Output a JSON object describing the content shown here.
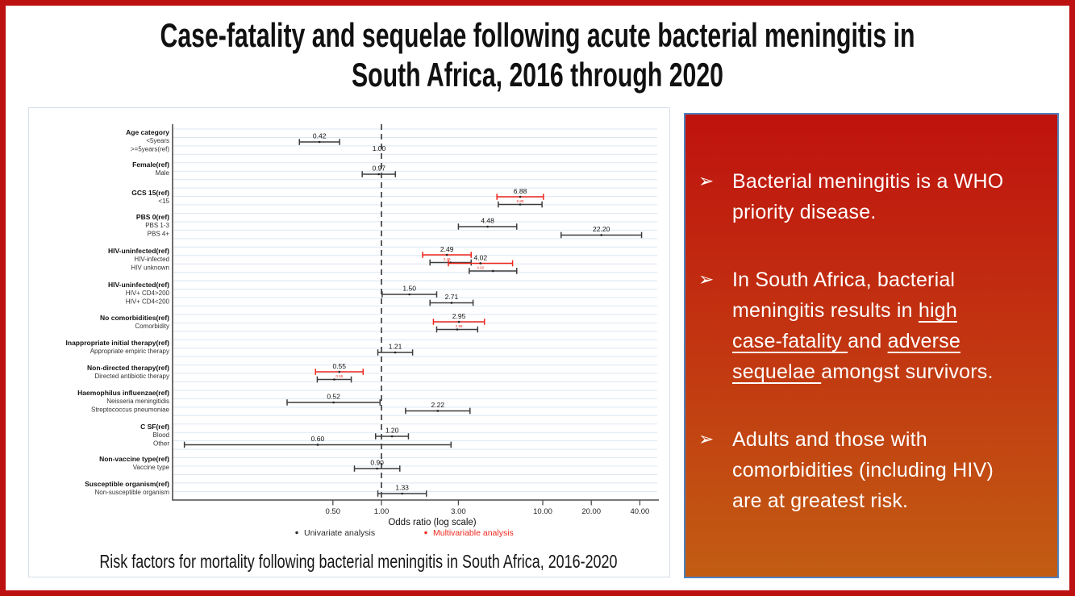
{
  "colors": {
    "outer_border": "#bd1010",
    "panel_border": "#4f81bd",
    "panel_gradient_top": "#bf120e",
    "panel_gradient_bottom": "#c25d13",
    "panel_text": "#ffffff",
    "univariate": "#3c3c3c",
    "multivariable": "#ee261b",
    "gridline": "#dde7f1"
  },
  "title": {
    "line1": "Case-fatality and sequelae following acute bacterial meningitis in",
    "line2": "South Africa, 2016 through 2020"
  },
  "figure": {
    "caption": "Risk factors for mortality following bacterial meningitis in South Africa, 2016-2020"
  },
  "chart_data": {
    "type": "forest",
    "xlabel": "Odds ratio (log scale)",
    "x_scale": "log10",
    "x_ticks": [
      0.5,
      1.0,
      3.0,
      10.0,
      20.0,
      40.0
    ],
    "x_tick_labels": [
      "0.50",
      "1.00",
      "3.00",
      "10.00",
      "20.00",
      "40.00"
    ],
    "reference_line": 1.0,
    "grid": true,
    "legend": [
      {
        "label": "Univariate analysis",
        "color": "#2b2b2b"
      },
      {
        "label": "Multivariable analysis",
        "color": "#ee261b"
      }
    ],
    "groups": [
      {
        "header": "Age category",
        "rows": [
          {
            "label": "<5years",
            "value_label": "0.42",
            "uni": {
              "or": 0.42,
              "lo": 0.31,
              "hi": 0.55
            }
          },
          {
            "label": ">=5years(ref)",
            "value_label": "1.00",
            "ref": true
          }
        ]
      },
      {
        "header": "Female(ref)",
        "rows": [
          {
            "label": "Male",
            "value_label": "0.97",
            "uni": {
              "or": 0.97,
              "lo": 0.76,
              "hi": 1.22
            }
          }
        ]
      },
      {
        "header": "GCS 15(ref)",
        "rows": [
          {
            "label": "<15",
            "value_label": "6.88",
            "multi": {
              "or": 6.88,
              "lo": 5.2,
              "hi": 10.1
            },
            "uni": {
              "lo": 5.3,
              "hi": 9.9
            }
          }
        ]
      },
      {
        "header": "PBS 0(ref)",
        "rows": [
          {
            "label": "PBS 1-3",
            "value_label": "4.48",
            "uni": {
              "or": 4.48,
              "lo": 3.0,
              "hi": 6.9
            }
          },
          {
            "label": "PBS 4+",
            "value_label": "22.20",
            "uni": {
              "or": 22.2,
              "lo": 13.0,
              "hi": 41.0
            }
          }
        ]
      },
      {
        "header": "HIV-uninfected(ref)",
        "rows": [
          {
            "label": "HIV-infected",
            "value_label": "2.49",
            "multi": {
              "or": 2.49,
              "lo": 1.8,
              "hi": 3.6
            },
            "uni": {
              "lo": 2.0,
              "hi": 3.6
            }
          },
          {
            "label": "HIV unknown",
            "value_label": "4.02",
            "multi": {
              "or": 4.02,
              "lo": 2.6,
              "hi": 6.5
            },
            "uni": {
              "lo": 3.5,
              "hi": 6.9
            }
          }
        ]
      },
      {
        "header": "HIV-uninfected(ref)",
        "rows": [
          {
            "label": "HIV+ CD4>200",
            "value_label": "1.50",
            "uni": {
              "or": 1.5,
              "lo": 1.01,
              "hi": 2.2
            }
          },
          {
            "label": "HIV+ CD4<200",
            "value_label": "2.71",
            "uni": {
              "or": 2.71,
              "lo": 2.0,
              "hi": 3.7
            }
          }
        ]
      },
      {
        "header": "No comorbidities(ref)",
        "rows": [
          {
            "label": "Comorbidity",
            "value_label": "2.95",
            "multi": {
              "or": 2.95,
              "lo": 2.1,
              "hi": 4.35
            },
            "uni": {
              "lo": 2.2,
              "hi": 3.95
            }
          }
        ]
      },
      {
        "header": "Inappropriate initial therapy(ref)",
        "rows": [
          {
            "label": "Appropriate empiric therapy",
            "value_label": "1.21",
            "uni": {
              "or": 1.21,
              "lo": 0.95,
              "hi": 1.56
            }
          }
        ]
      },
      {
        "header": "Non-directed therapy(ref)",
        "rows": [
          {
            "label": "Directed antibiotic therapy",
            "value_label": "0.55",
            "multi": {
              "or": 0.55,
              "lo": 0.39,
              "hi": 0.77
            },
            "uni": {
              "lo": 0.4,
              "hi": 0.65
            }
          }
        ]
      },
      {
        "header": "Haemophilus influenzae(ref)",
        "rows": [
          {
            "label": "Neisseria meningitidis",
            "value_label": "0.52",
            "uni": {
              "or": 0.52,
              "lo": 0.26,
              "hi": 0.98
            }
          },
          {
            "label": "Streptococcus pneumoniae",
            "value_label": "2.22",
            "uni": {
              "or": 2.22,
              "lo": 1.41,
              "hi": 3.54
            }
          }
        ]
      },
      {
        "header": "C SF(ref)",
        "rows": [
          {
            "label": "Blood",
            "value_label": "1.20",
            "uni": {
              "or": 1.2,
              "lo": 0.92,
              "hi": 1.47
            }
          },
          {
            "label": "Other",
            "value_label": "0.60",
            "uni": {
              "or": 0.6,
              "lo": 0.06,
              "hi": 2.7
            }
          }
        ]
      },
      {
        "header": "Non-vaccine type(ref)",
        "rows": [
          {
            "label": "Vaccine type",
            "value_label": "0.90",
            "uni": {
              "or": 0.9,
              "lo": 0.68,
              "hi": 1.3
            }
          }
        ]
      },
      {
        "header": "Susceptible organism(ref)",
        "rows": [
          {
            "label": "Non-susceptible organism",
            "value_label": "1.33",
            "uni": {
              "or": 1.33,
              "lo": 0.95,
              "hi": 1.9
            }
          }
        ]
      }
    ]
  },
  "right_panel": {
    "bullet_icon": "➢",
    "bullets": [
      {
        "segments": [
          {
            "t": "Bacterial meningitis is a WHO\npriority disease."
          }
        ]
      },
      {
        "segments": [
          {
            "t": "In South Africa, bacterial\nmeningitis results in "
          },
          {
            "t": "high",
            "u": true
          },
          {
            "t": "\n"
          },
          {
            "t": "case-fatality ",
            "u": true
          },
          {
            "t": "and "
          },
          {
            "t": "adverse",
            "u": true
          },
          {
            "t": "\n"
          },
          {
            "t": "sequelae ",
            "u": true
          },
          {
            "t": "amongst survivors."
          }
        ]
      },
      {
        "segments": [
          {
            "t": "Adults and those with\ncomorbidities (including HIV)\nare at greatest risk."
          }
        ]
      }
    ]
  }
}
